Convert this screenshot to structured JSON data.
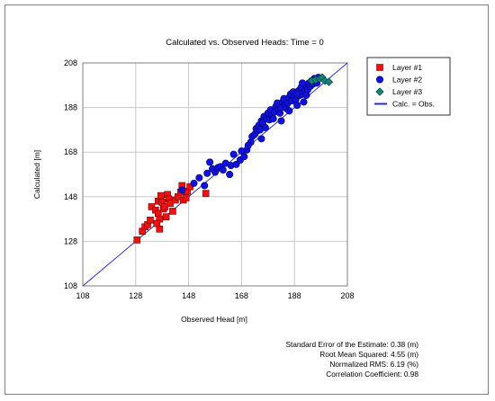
{
  "chart_data": {
    "type": "scatter",
    "title": "Calculated vs. Observed Heads: Time = 0",
    "xlabel": "Observed Head [m]",
    "ylabel": "Calculated [m]",
    "xlim": [
      108,
      208
    ],
    "ylim": [
      108,
      208
    ],
    "xticks": [
      "108",
      "128",
      "148",
      "168",
      "188",
      "208"
    ],
    "yticks": [
      "108",
      "128",
      "148",
      "168",
      "188",
      "208"
    ],
    "grid": true,
    "legend_position": "top-right",
    "reference_line": {
      "name": "Calc. = Obs.",
      "color": "#2a2ad6"
    },
    "series": [
      {
        "name": "Layer #1",
        "marker": "square",
        "color": "#ee1111",
        "points": [
          [
            128.5,
            128.6
          ],
          [
            130.5,
            132.5
          ],
          [
            131.5,
            134.5
          ],
          [
            132.5,
            135.5
          ],
          [
            133.5,
            137.5
          ],
          [
            134.0,
            143.5
          ],
          [
            135.5,
            142.0
          ],
          [
            136.5,
            146.0
          ],
          [
            136.5,
            140.5
          ],
          [
            137.0,
            138.0
          ],
          [
            137.0,
            133.5
          ],
          [
            137.5,
            148.5
          ],
          [
            138.0,
            145.5
          ],
          [
            138.5,
            142.5
          ],
          [
            139.0,
            143.5
          ],
          [
            140.0,
            149.0
          ],
          [
            140.5,
            147.0
          ],
          [
            141.0,
            145.0
          ],
          [
            142.0,
            141.5
          ],
          [
            143.0,
            146.5
          ],
          [
            144.0,
            148.0
          ],
          [
            145.0,
            150.0
          ],
          [
            145.5,
            153.0
          ],
          [
            146.0,
            146.5
          ],
          [
            147.0,
            147.5
          ],
          [
            147.5,
            150.5
          ],
          [
            148.5,
            152.5
          ],
          [
            154.5,
            149.5
          ],
          [
            136.0,
            136.0
          ],
          [
            139.5,
            139.0
          ]
        ]
      },
      {
        "name": "Layer #2",
        "marker": "circle",
        "color": "#1111dd",
        "points": [
          [
            145.5,
            151.0
          ],
          [
            150.0,
            154.0
          ],
          [
            152.0,
            156.5
          ],
          [
            154.0,
            153.0
          ],
          [
            155.0,
            158.5
          ],
          [
            156.0,
            163.5
          ],
          [
            157.0,
            160.5
          ],
          [
            158.0,
            159.0
          ],
          [
            159.0,
            161.0
          ],
          [
            160.0,
            161.5
          ],
          [
            161.0,
            160.0
          ],
          [
            162.0,
            163.0
          ],
          [
            163.5,
            158.0
          ],
          [
            164.0,
            162.0
          ],
          [
            165.0,
            167.0
          ],
          [
            166.0,
            162.5
          ],
          [
            167.5,
            164.5
          ],
          [
            169.0,
            166.0
          ],
          [
            170.0,
            169.0
          ],
          [
            171.5,
            172.5
          ],
          [
            172.0,
            175.0
          ],
          [
            173.0,
            176.0
          ],
          [
            173.5,
            178.5
          ],
          [
            174.0,
            177.5
          ],
          [
            174.5,
            180.0
          ],
          [
            175.0,
            178.0
          ],
          [
            175.5,
            182.0
          ],
          [
            176.0,
            181.0
          ],
          [
            176.5,
            184.0
          ],
          [
            177.0,
            179.0
          ],
          [
            177.5,
            183.0
          ],
          [
            178.0,
            185.5
          ],
          [
            178.5,
            182.5
          ],
          [
            179.0,
            187.0
          ],
          [
            179.5,
            184.5
          ],
          [
            180.0,
            183.0
          ],
          [
            180.5,
            186.0
          ],
          [
            181.0,
            188.5
          ],
          [
            181.5,
            190.0
          ],
          [
            182.0,
            187.0
          ],
          [
            182.5,
            185.5
          ],
          [
            183.0,
            188.0
          ],
          [
            183.5,
            190.5
          ],
          [
            184.0,
            192.0
          ],
          [
            184.5,
            189.0
          ],
          [
            185.0,
            187.5
          ],
          [
            185.5,
            190.0
          ],
          [
            186.0,
            192.5
          ],
          [
            186.5,
            194.0
          ],
          [
            187.0,
            191.0
          ],
          [
            187.5,
            195.0
          ],
          [
            188.0,
            193.0
          ],
          [
            188.5,
            191.5
          ],
          [
            189.0,
            189.0
          ],
          [
            189.5,
            195.5
          ],
          [
            190.0,
            193.5
          ],
          [
            190.5,
            197.0
          ],
          [
            191.0,
            194.0
          ],
          [
            191.5,
            190.5
          ],
          [
            192.0,
            195.5
          ],
          [
            192.5,
            198.0
          ],
          [
            193.0,
            196.0
          ],
          [
            193.5,
            199.0
          ],
          [
            194.0,
            197.5
          ],
          [
            194.5,
            200.0
          ],
          [
            195.0,
            198.5
          ],
          [
            195.5,
            201.0
          ],
          [
            196.0,
            200.0
          ],
          [
            196.5,
            199.0
          ],
          [
            197.0,
            201.5
          ],
          [
            170.5,
            171.0
          ],
          [
            168.0,
            168.5
          ],
          [
            175.5,
            174.0
          ],
          [
            183.0,
            182.0
          ],
          [
            186.0,
            186.5
          ],
          [
            189.0,
            194.0
          ],
          [
            191.0,
            199.0
          ],
          [
            192.5,
            193.5
          ]
        ]
      },
      {
        "name": "Layer #3",
        "marker": "diamond",
        "color": "#118877",
        "points": [
          [
            194.5,
            200.0
          ],
          [
            196.0,
            200.5
          ],
          [
            197.5,
            201.0
          ],
          [
            198.5,
            201.5
          ],
          [
            199.5,
            200.0
          ],
          [
            201.0,
            199.5
          ]
        ]
      }
    ]
  },
  "stats": {
    "standard_error": "Standard Error of the Estimate: 0.38 (m)",
    "rms": "Root Mean Squared: 4.55 (m)",
    "normalized_rms": "Normalized RMS: 6.19 (%)",
    "correlation": "Correlation Coefficient: 0.98"
  }
}
